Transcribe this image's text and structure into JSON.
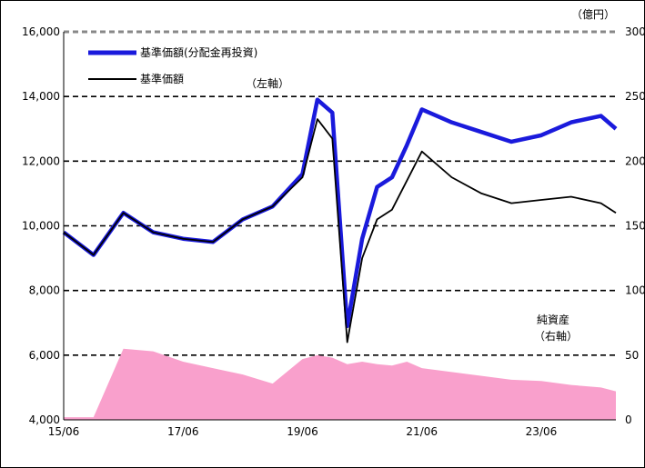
{
  "chart_data": {
    "type": "line",
    "unit_label": "（億円）",
    "left_axis": {
      "ticks": [
        "4,000",
        "6,000",
        "8,000",
        "10,000",
        "12,000",
        "14,000",
        "16,000"
      ],
      "range": [
        4000,
        16000
      ]
    },
    "right_axis": {
      "ticks": [
        "0",
        "50",
        "100",
        "150",
        "200",
        "250",
        "300"
      ],
      "range": [
        0,
        300
      ]
    },
    "x_ticks": [
      "15/06",
      "17/06",
      "19/06",
      "21/06",
      "23/06"
    ],
    "x": [
      "15/06",
      "15/12",
      "16/06",
      "16/12",
      "17/06",
      "17/12",
      "18/06",
      "18/12",
      "19/06",
      "19/09",
      "19/12",
      "20/03",
      "20/06",
      "20/09",
      "20/12",
      "21/03",
      "21/06",
      "21/12",
      "22/06",
      "22/12",
      "23/06",
      "23/12",
      "24/06",
      "24/09"
    ],
    "grid": "dashed horizontal at each left tick",
    "legend_position": "top-left",
    "axis_note": "（左軸）",
    "series": [
      {
        "name": "基準価額(分配金再投資)",
        "axis": "left",
        "color": "#1a1adc",
        "values": [
          9800,
          9100,
          10400,
          9800,
          9600,
          9500,
          10200,
          10600,
          11600,
          13900,
          13500,
          6900,
          9600,
          11200,
          11500,
          12500,
          13600,
          13200,
          12900,
          12600,
          12800,
          13200,
          13400,
          13000
        ]
      },
      {
        "name": "基準価額",
        "axis": "left",
        "color": "#000000",
        "values": [
          9800,
          9100,
          10400,
          9800,
          9600,
          9500,
          10200,
          10600,
          11500,
          13300,
          12700,
          6400,
          9000,
          10200,
          10500,
          11400,
          12300,
          11500,
          11000,
          10700,
          10800,
          10900,
          10700,
          10400
        ]
      },
      {
        "name": "純資産\n（右軸）",
        "axis": "right",
        "type": "area",
        "color": "#f9a0cc",
        "values": [
          2,
          2,
          55,
          53,
          45,
          40,
          35,
          28,
          47,
          50,
          48,
          43,
          45,
          43,
          42,
          45,
          40,
          37,
          34,
          31,
          30,
          27,
          25,
          22
        ]
      }
    ]
  }
}
